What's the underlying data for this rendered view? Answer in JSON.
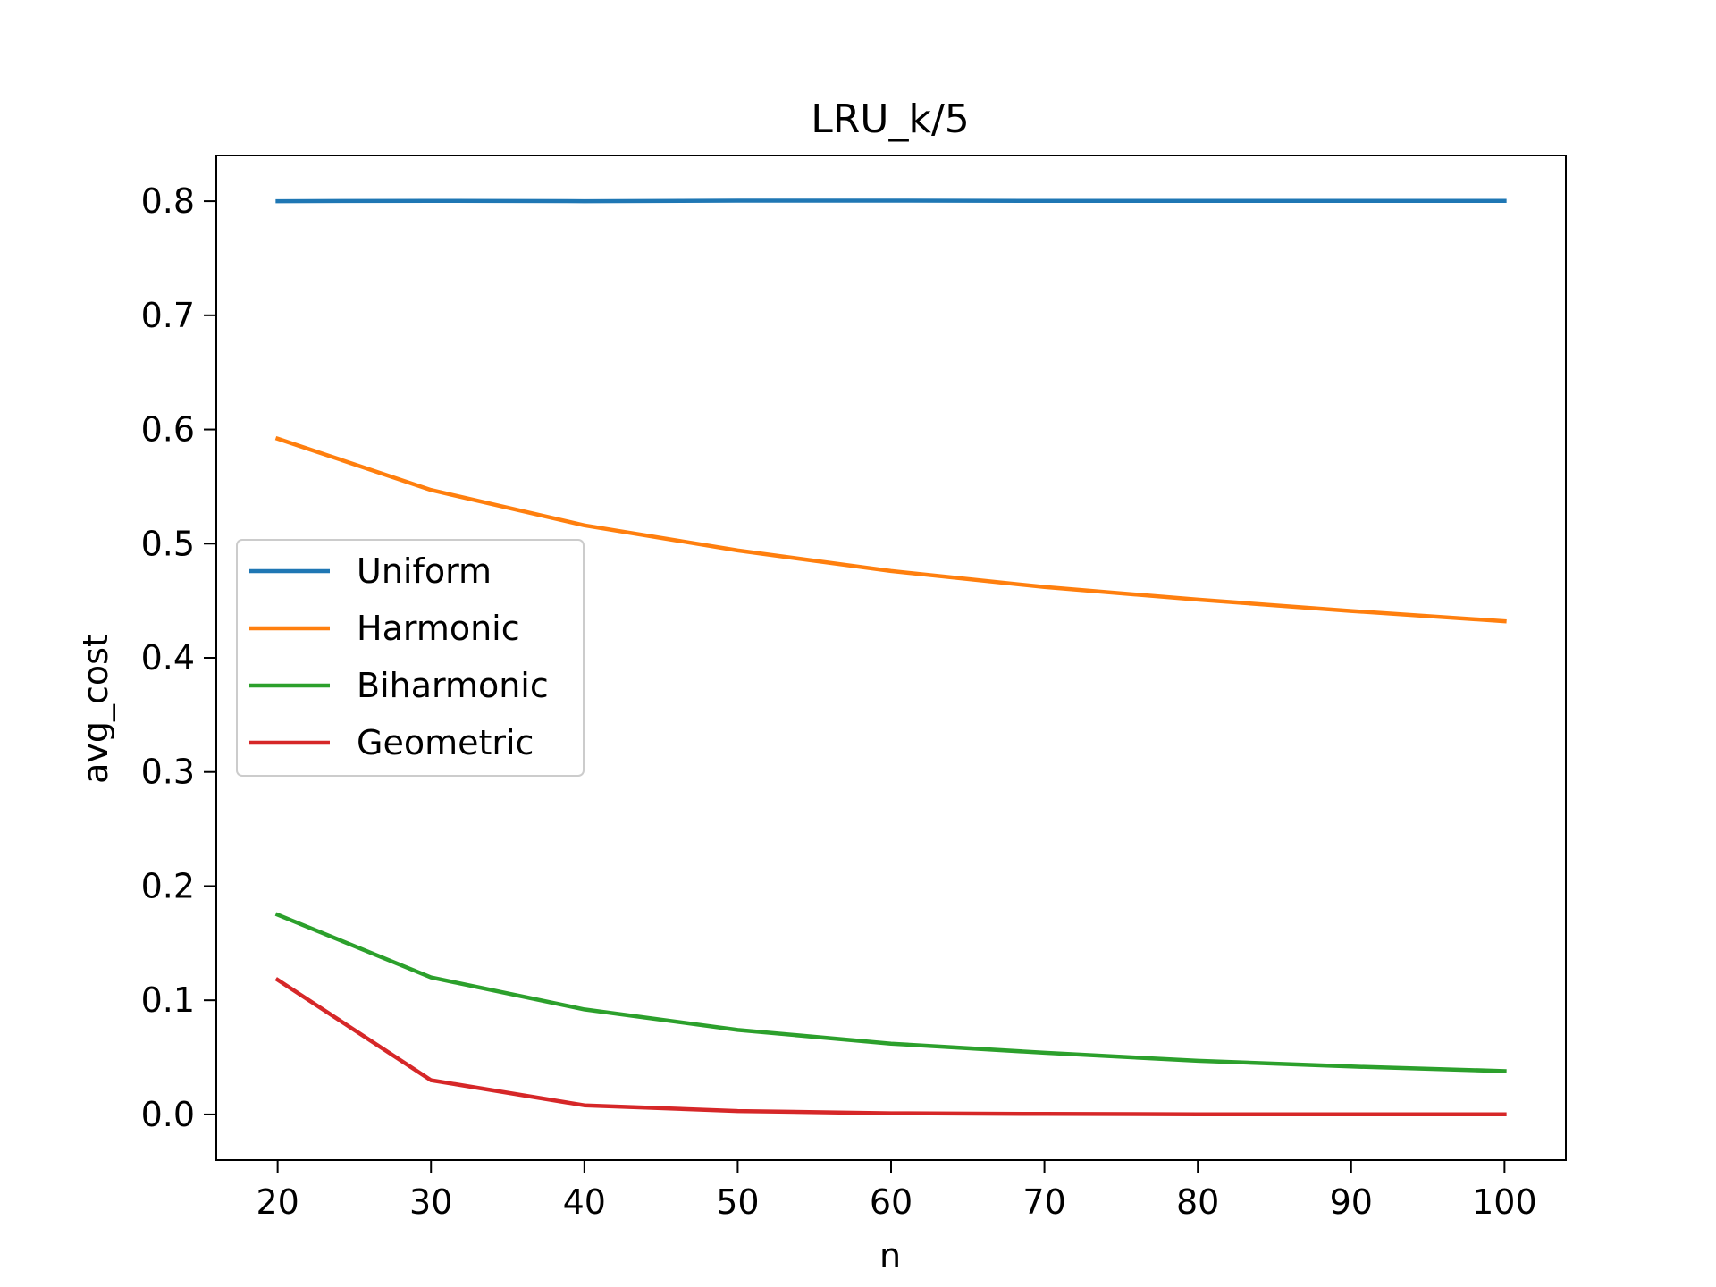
{
  "chart_data": {
    "type": "line",
    "title": "LRU_k/5",
    "xlabel": "n",
    "ylabel": "avg_cost",
    "x": [
      20,
      30,
      40,
      50,
      60,
      70,
      80,
      90,
      100
    ],
    "xlim": [
      16,
      104
    ],
    "ylim": [
      -0.04,
      0.84
    ],
    "xticks": [
      20,
      30,
      40,
      50,
      60,
      70,
      80,
      90,
      100
    ],
    "yticks": [
      0.0,
      0.1,
      0.2,
      0.3,
      0.4,
      0.5,
      0.6,
      0.7,
      0.8
    ],
    "ytick_labels": [
      "0.0",
      "0.1",
      "0.2",
      "0.3",
      "0.4",
      "0.5",
      "0.6",
      "0.7",
      "0.8"
    ],
    "grid": false,
    "legend_position": "center-left",
    "series": [
      {
        "name": "Uniform",
        "color": "#1f77b4",
        "values": [
          0.8,
          0.8003,
          0.8,
          0.8005,
          0.8005,
          0.8002,
          0.8002,
          0.8002,
          0.8002
        ]
      },
      {
        "name": "Harmonic",
        "color": "#ff7f0e",
        "values": [
          0.592,
          0.547,
          0.516,
          0.494,
          0.476,
          0.462,
          0.451,
          0.441,
          0.432
        ]
      },
      {
        "name": "Biharmonic",
        "color": "#2ca02c",
        "values": [
          0.175,
          0.12,
          0.092,
          0.074,
          0.062,
          0.054,
          0.047,
          0.042,
          0.038
        ]
      },
      {
        "name": "Geometric",
        "color": "#d62728",
        "values": [
          0.118,
          0.03,
          0.008,
          0.003,
          0.001,
          0.0005,
          0.0002,
          0.0001,
          0.0001
        ]
      }
    ]
  }
}
